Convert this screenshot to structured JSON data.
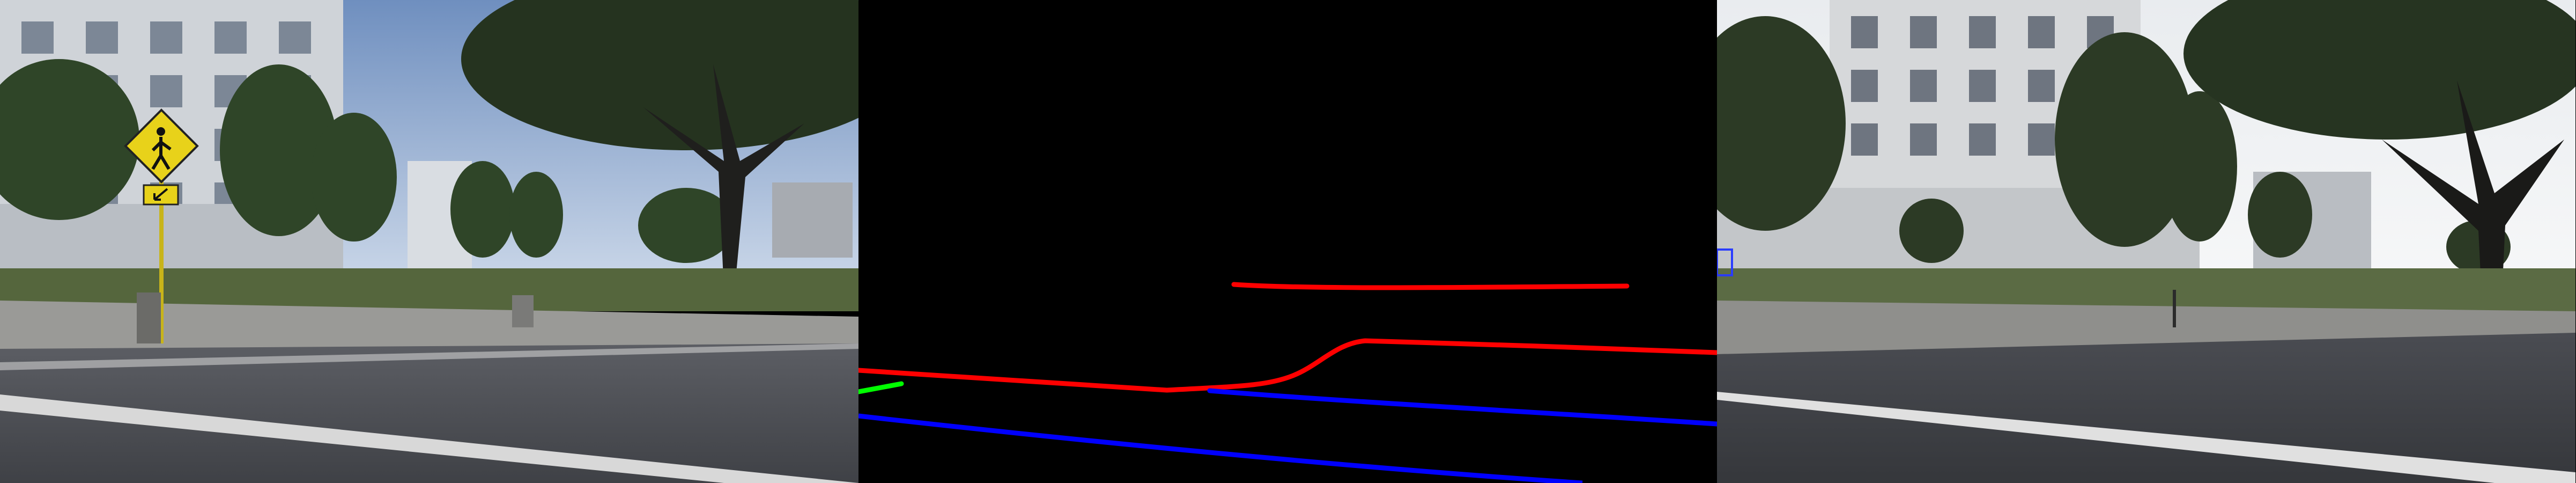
{
  "panels": [
    {
      "name": "street-scene-camera-view"
    },
    {
      "name": "lane-map-topdown"
    },
    {
      "name": "street-scene-generated-view"
    }
  ],
  "colors": {
    "lane_red": "#ff0000",
    "lane_blue": "#0000ff",
    "lane_green": "#00ff00",
    "map_background": "#000000",
    "sign_yellow": "#e8d21a"
  }
}
